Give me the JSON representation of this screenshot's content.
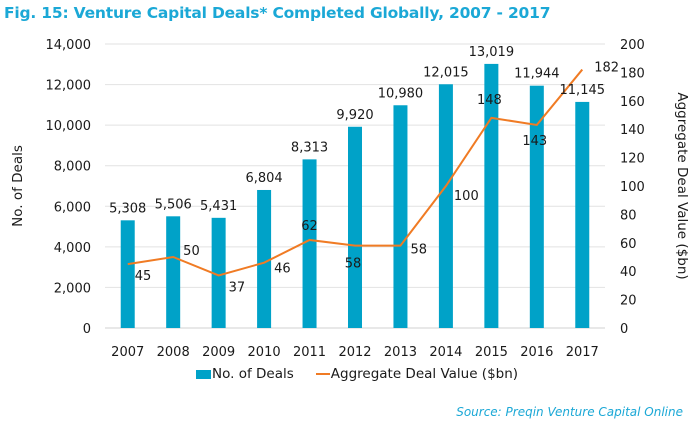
{
  "chart_data": {
    "type": "bar",
    "title": "Fig. 15: Venture Capital Deals* Completed Globally, 2007 - 2017",
    "categories": [
      "2007",
      "2008",
      "2009",
      "2010",
      "2011",
      "2012",
      "2013",
      "2014",
      "2015",
      "2016",
      "2017"
    ],
    "series": [
      {
        "name": "No. of Deals",
        "type": "bar",
        "axis": "left",
        "color": "#00a2c8",
        "values": [
          5308,
          5506,
          5431,
          6804,
          8313,
          9920,
          10980,
          12015,
          13019,
          11944,
          11145
        ],
        "labels": [
          "5,308",
          "5,506",
          "5,431",
          "6,804",
          "8,313",
          "9,920",
          "10,980",
          "12,015",
          "13,019",
          "11,944",
          "11,145"
        ]
      },
      {
        "name": "Aggregate Deal Value ($bn)",
        "type": "line",
        "axis": "right",
        "color": "#f07b24",
        "values": [
          45,
          50,
          37,
          46,
          62,
          58,
          58,
          100,
          148,
          143,
          182
        ],
        "labels": [
          "45",
          "50",
          "37",
          "46",
          "62",
          "58",
          "58",
          "100",
          "148",
          "143",
          "182"
        ]
      }
    ],
    "ylabel": "No. of Deals",
    "y2label": "Aggregate Deal Value ($bn)",
    "xlabel": "",
    "ylim": [
      0,
      14000
    ],
    "y2lim": [
      0,
      200
    ],
    "yticks": [
      "0",
      "2,000",
      "4,000",
      "6,000",
      "8,000",
      "10,000",
      "12,000",
      "14,000"
    ],
    "y2ticks": [
      "0",
      "20",
      "40",
      "60",
      "80",
      "100",
      "120",
      "140",
      "160",
      "180",
      "200"
    ],
    "grid": true,
    "legend_position": "bottom"
  },
  "legend": {
    "bar_label": "No. of Deals",
    "line_label": "Aggregate Deal Value ($bn)"
  },
  "source": "Source: Preqin Venture Capital Online"
}
